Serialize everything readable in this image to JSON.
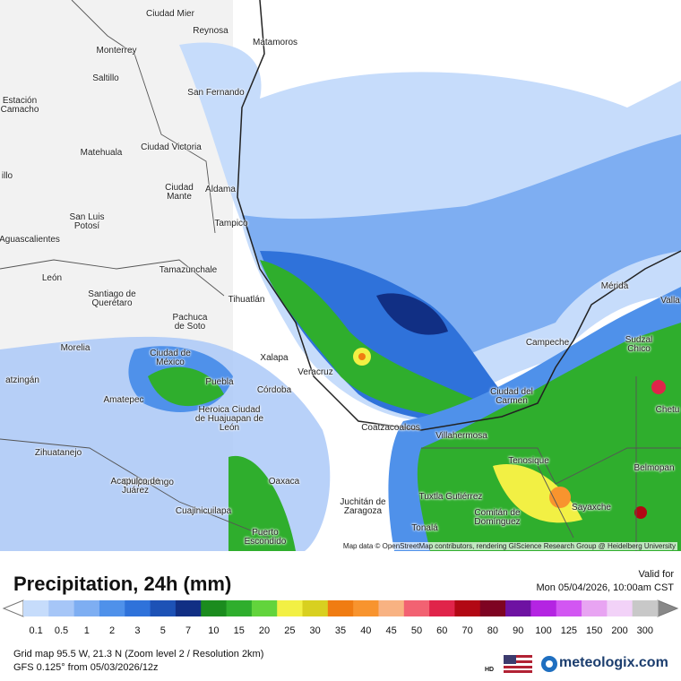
{
  "map": {
    "cities": [
      "Ciudad Mier",
      "Reynosa",
      "Matamoros",
      "Monterrey",
      "Saltillo",
      "Estación Camacho",
      "San Fernando",
      "Ciudad Victoria",
      "Matehuala",
      "Ciudad Mante",
      "Aldama",
      "illo",
      "San Luis Potosí",
      "Aguascalientes",
      "Tampico",
      "Tamazunchale",
      "León",
      "Santiago de Querétaro",
      "Tihuatlán",
      "Mérida",
      "Valla",
      "Pachuca de Soto",
      "Campeche",
      "Sudzal Chico",
      "Morelia",
      "Ciudad de México",
      "Xalapa",
      "Veracruz",
      "Puebla",
      "atzingán",
      "Córdoba",
      "Ciudad del Carmen",
      "Chetu",
      "Amatepec",
      "Heroica Ciudad de Huajuapan de León",
      "Coatzacoalcos",
      "Villahermosa",
      "Zihuatanejo",
      "Tenosique",
      "Belmopan",
      "Chilpancingo",
      "Oaxaca",
      "Acapulco de Juárez",
      "Tuxtla Gutiérrez",
      "Juchitán de Zaragoza",
      "Sayaxche",
      "Comitán de Domínguez",
      "Cuajinicuilapa",
      "Puerto Escondido",
      "Tonalá"
    ],
    "attribution": "Map data © OpenStreetMap contributors, rendering GIScience Research Group @ Heidelberg University"
  },
  "legend": {
    "title": "Precipitation, 24h (mm)",
    "valid_label": "Valid for",
    "valid_time": "Mon 05/04/2026, 10:00am CST",
    "labels": [
      0.1,
      0.5,
      1,
      2,
      3,
      5,
      7,
      10,
      15,
      20,
      25,
      30,
      35,
      40,
      45,
      50,
      60,
      70,
      80,
      90,
      100,
      125,
      150,
      200,
      300
    ],
    "colors": [
      "#c6dcfb",
      "#a6c6f7",
      "#7eaef2",
      "#4f91ea",
      "#2f72da",
      "#1d52b6",
      "#112f84",
      "#1b8c1e",
      "#2fae2d",
      "#62d43c",
      "#f2f044",
      "#d8d020",
      "#f07c12",
      "#f8942e",
      "#f8b282",
      "#f26272",
      "#e0244a",
      "#b20814",
      "#7e0422",
      "#6e12a2",
      "#b424e2",
      "#d256f2",
      "#e8a4f2",
      "#f2d2f8",
      "#c8c8c8"
    ]
  },
  "footer": {
    "grid": "Grid map 95.5 W, 21.3 N (Zoom level 2 / Resolution 2km)",
    "model": "GFS 0.125° from  05/03/2026/12z",
    "hd": "HD",
    "brand": "meteologix.com"
  }
}
